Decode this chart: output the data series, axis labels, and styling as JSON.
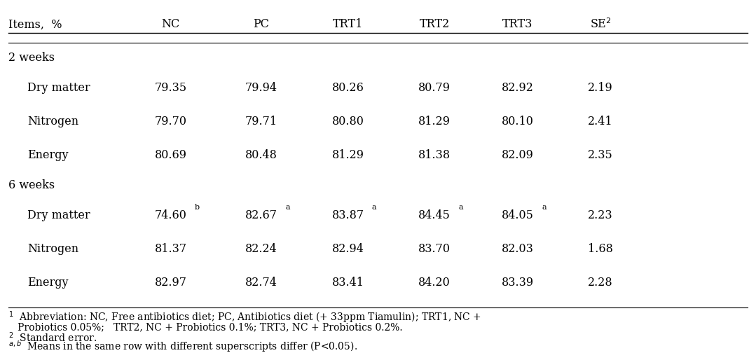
{
  "headers": [
    "Items,  %",
    "NC",
    "PC",
    "TRT1",
    "TRT2",
    "TRT3",
    "SE²"
  ],
  "header_superscripts": {
    "SE²": "2"
  },
  "section_2weeks": "2 weeks",
  "section_6weeks": "6 weeks",
  "rows_2weeks": [
    {
      "label": "Dry matter",
      "NC": "79.35",
      "PC": "79.94",
      "TRT1": "80.26",
      "TRT2": "80.79",
      "TRT3": "82.92",
      "SE": "2.19",
      "superscripts": {}
    },
    {
      "label": "Nitrogen",
      "NC": "79.70",
      "PC": "79.71",
      "TRT1": "80.80",
      "TRT2": "81.29",
      "TRT3": "80.10",
      "SE": "2.41",
      "superscripts": {}
    },
    {
      "label": "Energy",
      "NC": "80.69",
      "PC": "80.48",
      "TRT1": "81.29",
      "TRT2": "81.38",
      "TRT3": "82.09",
      "SE": "2.35",
      "superscripts": {}
    }
  ],
  "rows_6weeks": [
    {
      "label": "Dry matter",
      "NC": "74.60",
      "PC": "82.67",
      "TRT1": "83.87",
      "TRT2": "84.45",
      "TRT3": "84.05",
      "SE": "2.23",
      "superscripts": {
        "NC": "b",
        "PC": "a",
        "TRT1": "a",
        "TRT2": "a",
        "TRT3": "a"
      }
    },
    {
      "label": "Nitrogen",
      "NC": "81.37",
      "PC": "82.24",
      "TRT1": "82.94",
      "TRT2": "83.70",
      "TRT3": "82.03",
      "SE": "1.68",
      "superscripts": {}
    },
    {
      "label": "Energy",
      "NC": "82.97",
      "PC": "82.74",
      "TRT1": "83.41",
      "TRT2": "84.20",
      "TRT3": "83.39",
      "SE": "2.28",
      "superscripts": {}
    }
  ],
  "footnotes": [
    "1  Abbreviation: NC, Free antibiotics diet; PC, Antibiotics diet (+ 33ppm Tiamulin); TRT1, NC +",
    "   Probiotics 0.05%;   TRT2, NC + Probiotics 0.1%; TRT3, NC + Probiotics 0.2%.",
    "2  Standard error.",
    "a,b  Means in the same row with different superscripts differ (P<0.05)."
  ],
  "bg_color": "#ffffff",
  "text_color": "#000000",
  "font_size": 11.5,
  "footnote_font_size": 10.0
}
